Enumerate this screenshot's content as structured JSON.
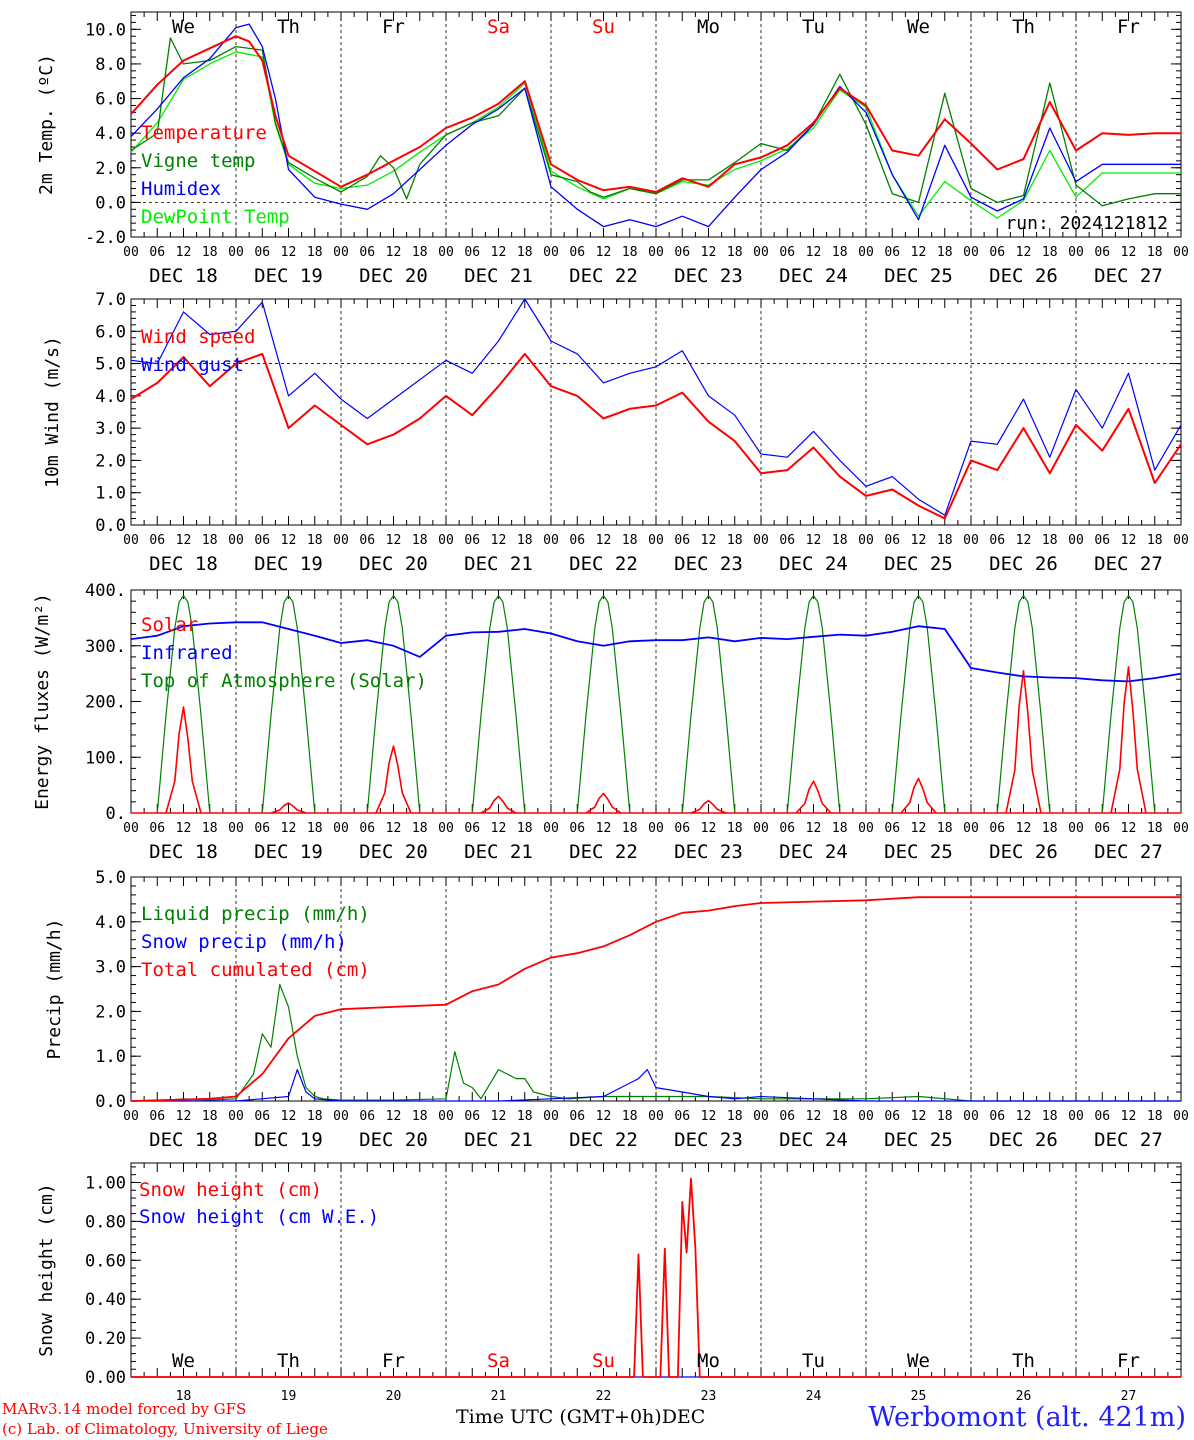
{
  "chart_data": [
    {
      "type": "line",
      "ylabel": "2m Temp. (ºC)",
      "ylim": [
        -2,
        11
      ],
      "yticks": [
        "-2.0",
        "0.0",
        "2.0",
        "4.0",
        "6.0",
        "8.0",
        "10.0"
      ],
      "ytick_values": [
        -2,
        0,
        2,
        4,
        6,
        8,
        10
      ],
      "run_label": "run: 2024121812",
      "reference_line": 0,
      "series": [
        {
          "name": "Temperature",
          "color": "#ff0000",
          "x": [
            0,
            6,
            12,
            18,
            24,
            27,
            30,
            33,
            36,
            42,
            48,
            54,
            60,
            66,
            72,
            78,
            84,
            90,
            96,
            102,
            108,
            114,
            120,
            126,
            132,
            138,
            144,
            150,
            156,
            162,
            168,
            174,
            180,
            186,
            192,
            198,
            204,
            210,
            216,
            222,
            228,
            234,
            240
          ],
          "values": [
            5.1,
            6.8,
            8.2,
            8.9,
            9.6,
            9.3,
            8.2,
            5.0,
            2.7,
            1.8,
            0.9,
            1.6,
            2.4,
            3.2,
            4.3,
            4.9,
            5.7,
            7.0,
            2.2,
            1.3,
            0.7,
            0.9,
            0.6,
            1.4,
            0.9,
            2.2,
            2.6,
            3.3,
            4.6,
            6.6,
            5.6,
            3.0,
            2.7,
            4.8,
            3.4,
            1.9,
            2.5,
            5.8,
            3.0,
            4.0,
            3.9,
            4.0,
            4.0
          ]
        },
        {
          "name": "Vigne temp",
          "color": "#008000",
          "x": [
            0,
            6,
            9,
            12,
            18,
            24,
            30,
            33,
            36,
            42,
            48,
            54,
            57,
            60,
            63,
            66,
            72,
            78,
            84,
            90,
            96,
            102,
            105,
            108,
            114,
            120,
            126,
            132,
            138,
            144,
            150,
            156,
            162,
            168,
            174,
            180,
            186,
            192,
            198,
            204,
            210,
            216,
            222,
            228,
            234,
            240
          ],
          "values": [
            3.0,
            4.0,
            9.5,
            8.0,
            8.2,
            9.0,
            8.8,
            4.6,
            2.3,
            1.4,
            0.6,
            1.5,
            2.7,
            2.0,
            0.2,
            2.2,
            3.9,
            4.6,
            5.0,
            6.6,
            1.6,
            1.2,
            0.6,
            0.3,
            0.8,
            0.5,
            1.3,
            1.3,
            2.3,
            3.4,
            3.0,
            4.5,
            7.4,
            4.5,
            0.5,
            0.0,
            6.3,
            0.8,
            0.0,
            0.4,
            6.9,
            1.0,
            -0.2,
            0.2,
            0.5,
            0.5
          ]
        },
        {
          "name": "Humidex",
          "color": "#0000ff",
          "x": [
            0,
            6,
            12,
            18,
            24,
            27,
            30,
            33,
            36,
            42,
            48,
            54,
            60,
            66,
            72,
            78,
            84,
            90,
            96,
            102,
            108,
            114,
            120,
            126,
            132,
            138,
            144,
            150,
            156,
            162,
            168,
            174,
            180,
            186,
            192,
            198,
            204,
            210,
            216,
            222,
            228,
            234,
            240
          ],
          "values": [
            3.8,
            5.4,
            7.2,
            8.3,
            10.1,
            10.3,
            9.0,
            6.0,
            1.9,
            0.3,
            -0.1,
            -0.4,
            0.5,
            1.9,
            3.3,
            4.5,
            5.4,
            6.6,
            0.9,
            -0.4,
            -1.4,
            -1.0,
            -1.4,
            -0.8,
            -1.4,
            0.3,
            1.9,
            2.9,
            4.5,
            6.7,
            5.2,
            1.6,
            -1.0,
            3.3,
            0.3,
            -0.5,
            0.2,
            4.3,
            1.2,
            2.2,
            2.2,
            2.2,
            2.2
          ]
        },
        {
          "name": "DewPoint Temp",
          "color": "#00ee00",
          "x": [
            0,
            6,
            12,
            18,
            24,
            30,
            33,
            36,
            42,
            48,
            54,
            60,
            66,
            72,
            78,
            84,
            90,
            96,
            102,
            108,
            114,
            120,
            126,
            132,
            138,
            144,
            150,
            156,
            162,
            168,
            174,
            180,
            186,
            192,
            198,
            204,
            210,
            216,
            222,
            228,
            234,
            240
          ],
          "values": [
            2.9,
            4.6,
            7.1,
            8.0,
            8.7,
            8.4,
            4.5,
            2.2,
            1.1,
            0.8,
            1.0,
            1.8,
            2.9,
            3.9,
            4.6,
            5.5,
            6.9,
            1.8,
            0.9,
            0.2,
            0.8,
            0.5,
            1.2,
            1.0,
            1.9,
            2.4,
            3.1,
            4.3,
            6.5,
            5.5,
            1.6,
            -0.8,
            1.2,
            0.1,
            -0.9,
            0.1,
            3.0,
            0.3,
            1.7,
            1.7,
            1.7,
            1.7
          ]
        }
      ]
    },
    {
      "type": "line",
      "ylabel": "10m Wind (m/s)",
      "ylim": [
        0,
        7
      ],
      "yticks": [
        "0.0",
        "1.0",
        "2.0",
        "3.0",
        "4.0",
        "5.0",
        "6.0",
        "7.0"
      ],
      "ytick_values": [
        0,
        1,
        2,
        3,
        4,
        5,
        6,
        7
      ],
      "reference_line": 5,
      "series": [
        {
          "name": "Wind speed",
          "color": "#ff0000",
          "x": [
            0,
            6,
            12,
            18,
            24,
            30,
            36,
            42,
            48,
            54,
            60,
            66,
            72,
            78,
            84,
            90,
            96,
            102,
            108,
            114,
            120,
            126,
            132,
            138,
            144,
            150,
            156,
            162,
            168,
            174,
            180,
            186,
            192,
            198,
            204,
            210,
            216,
            222,
            228,
            234,
            240
          ],
          "values": [
            3.9,
            4.4,
            5.2,
            4.3,
            5.0,
            5.3,
            3.0,
            3.7,
            3.1,
            2.5,
            2.8,
            3.3,
            4.0,
            3.4,
            4.3,
            5.3,
            4.3,
            4.0,
            3.3,
            3.6,
            3.7,
            4.1,
            3.2,
            2.6,
            1.6,
            1.7,
            2.4,
            1.5,
            0.9,
            1.1,
            0.6,
            0.2,
            2.0,
            1.7,
            3.0,
            1.6,
            3.1,
            2.3,
            3.6,
            1.3,
            2.5
          ]
        },
        {
          "name": "Wind gust",
          "color": "#0000ff",
          "x": [
            0,
            6,
            12,
            18,
            24,
            30,
            36,
            42,
            48,
            54,
            60,
            66,
            72,
            78,
            84,
            90,
            96,
            102,
            108,
            114,
            120,
            126,
            132,
            138,
            144,
            150,
            156,
            162,
            168,
            174,
            180,
            186,
            192,
            198,
            204,
            210,
            216,
            222,
            228,
            234,
            240
          ],
          "values": [
            5.1,
            5.0,
            6.6,
            5.9,
            6.0,
            6.9,
            4.0,
            4.7,
            3.9,
            3.3,
            3.9,
            4.5,
            5.1,
            4.7,
            5.7,
            7.0,
            5.7,
            5.3,
            4.4,
            4.7,
            4.9,
            5.4,
            4.0,
            3.4,
            2.2,
            2.1,
            2.9,
            2.0,
            1.2,
            1.5,
            0.8,
            0.3,
            2.6,
            2.5,
            3.9,
            2.1,
            4.2,
            3.0,
            4.7,
            1.7,
            3.1
          ]
        }
      ]
    },
    {
      "type": "line",
      "ylabel": "Energy fluxes (W/m²)",
      "ylim": [
        0,
        400
      ],
      "yticks": [
        "0.",
        "100.",
        "200.",
        "300.",
        "400."
      ],
      "ytick_values": [
        0,
        100,
        200,
        300,
        400
      ],
      "series": [
        {
          "name": "Solar",
          "color": "#ff0000",
          "peaks": [
            190,
            18,
            120,
            30,
            35,
            22,
            57,
            62,
            255,
            262
          ]
        },
        {
          "name": "Infrared",
          "color": "#0000ff",
          "x": [
            0,
            6,
            12,
            18,
            24,
            30,
            36,
            42,
            48,
            54,
            60,
            66,
            72,
            78,
            84,
            90,
            96,
            102,
            108,
            114,
            120,
            126,
            132,
            138,
            144,
            150,
            156,
            162,
            168,
            174,
            180,
            186,
            192,
            198,
            204,
            210,
            216,
            222,
            228,
            234,
            240
          ],
          "values": [
            312,
            318,
            335,
            340,
            342,
            342,
            330,
            318,
            305,
            310,
            300,
            280,
            318,
            324,
            325,
            330,
            322,
            308,
            300,
            308,
            310,
            310,
            315,
            308,
            314,
            312,
            316,
            320,
            318,
            325,
            335,
            330,
            260,
            252,
            245,
            243,
            242,
            238,
            236,
            242,
            250
          ]
        },
        {
          "name": "Top of Atmosphere (Solar)",
          "color": "#008000",
          "peak": 390
        }
      ]
    },
    {
      "type": "line",
      "ylabel": "Precip (mm/h)",
      "ylim": [
        0,
        5
      ],
      "yticks": [
        "0.0",
        "1.0",
        "2.0",
        "3.0",
        "4.0",
        "5.0"
      ],
      "ytick_values": [
        0,
        1,
        2,
        3,
        4,
        5
      ],
      "series": [
        {
          "name": "Liquid precip (mm/h)",
          "color": "#008000",
          "x": [
            0,
            6,
            12,
            18,
            24,
            28,
            30,
            32,
            34,
            36,
            38,
            40,
            42,
            44,
            48,
            60,
            72,
            74,
            76,
            78,
            80,
            84,
            88,
            90,
            92,
            96,
            100,
            108,
            120,
            132,
            144,
            168,
            180,
            192,
            240
          ],
          "values": [
            0,
            0,
            0.05,
            0.02,
            0.05,
            0.6,
            1.5,
            1.2,
            2.6,
            2.1,
            1.0,
            0.3,
            0.1,
            0.05,
            0.02,
            0.02,
            0.05,
            1.1,
            0.4,
            0.3,
            0.05,
            0.7,
            0.5,
            0.5,
            0.2,
            0.1,
            0.05,
            0.1,
            0.1,
            0.1,
            0.05,
            0.05,
            0.1,
            0,
            0
          ]
        },
        {
          "name": "Snow precip (mm/h)",
          "color": "#0000ff",
          "x": [
            0,
            24,
            36,
            38,
            40,
            42,
            48,
            72,
            84,
            96,
            108,
            112,
            116,
            118,
            120,
            126,
            132,
            138,
            144,
            156,
            168,
            180,
            240
          ],
          "values": [
            0,
            0,
            0.1,
            0.7,
            0.2,
            0.05,
            0,
            0,
            0,
            0.05,
            0.1,
            0.3,
            0.5,
            0.7,
            0.3,
            0.2,
            0.1,
            0.05,
            0.1,
            0.05,
            0,
            0,
            0
          ]
        },
        {
          "name": "Total cumulated (cm)",
          "color": "#ff0000",
          "x": [
            0,
            18,
            24,
            30,
            36,
            42,
            48,
            60,
            72,
            78,
            84,
            90,
            96,
            102,
            108,
            114,
            120,
            126,
            132,
            138,
            144,
            156,
            168,
            180,
            192,
            240
          ],
          "values": [
            0,
            0.05,
            0.1,
            0.6,
            1.4,
            1.9,
            2.05,
            2.1,
            2.15,
            2.45,
            2.6,
            2.95,
            3.2,
            3.3,
            3.45,
            3.7,
            4.0,
            4.2,
            4.25,
            4.35,
            4.42,
            4.45,
            4.48,
            4.55,
            4.55,
            4.55
          ]
        }
      ]
    },
    {
      "type": "line",
      "ylabel": "Snow height (cm)",
      "ylim": [
        0,
        1.1
      ],
      "yticks": [
        "0.00",
        "0.20",
        "0.40",
        "0.60",
        "0.80",
        "1.00"
      ],
      "ytick_values": [
        0,
        0.2,
        0.4,
        0.6,
        0.8,
        1.0
      ],
      "series": [
        {
          "name": "Snow height (cm)",
          "color": "#ff0000",
          "x": [
            0,
            115,
            116,
            117,
            119,
            120,
            121,
            122,
            123,
            124,
            125,
            126,
            127,
            128,
            129,
            130,
            131,
            132,
            133,
            134,
            135,
            240
          ],
          "values": [
            0,
            0,
            0.63,
            0,
            0,
            0,
            0,
            0.66,
            0,
            0,
            0,
            0.9,
            0.64,
            1.02,
            0.66,
            0,
            0,
            0,
            0,
            0,
            0,
            0
          ]
        },
        {
          "name": "Snow height (cm W.E.)",
          "color": "#0000ff",
          "x": [
            0,
            240
          ],
          "values": [
            0,
            0
          ]
        }
      ]
    }
  ],
  "x_axis": {
    "hour_ticks": [
      "00",
      "06",
      "12",
      "18"
    ],
    "final_tick": "00",
    "dates": [
      "DEC 18",
      "DEC 19",
      "DEC 20",
      "DEC 21",
      "DEC 22",
      "DEC 23",
      "DEC 24",
      "DEC 25",
      "DEC 26",
      "DEC 27"
    ],
    "weekdays": [
      "We",
      "Th",
      "Fr",
      "Sa",
      "Su",
      "Mo",
      "Tu",
      "We",
      "Th",
      "Fr"
    ],
    "weekday_colors": [
      "#000000",
      "#000000",
      "#000000",
      "#ff0000",
      "#ff0000",
      "#000000",
      "#000000",
      "#000000",
      "#000000",
      "#000000"
    ],
    "day_numbers": [
      "18",
      "19",
      "20",
      "21",
      "22",
      "23",
      "24",
      "25",
      "26",
      "27"
    ],
    "month": "DEC"
  },
  "footer": {
    "credit_line1": "MARv3.14 model forced by GFS",
    "credit_line2": "(c) Lab. of Climatology, University of Liege",
    "xlabel": "Time UTC (GMT+0h)",
    "station": "Werbomont (alt. 421m)"
  }
}
